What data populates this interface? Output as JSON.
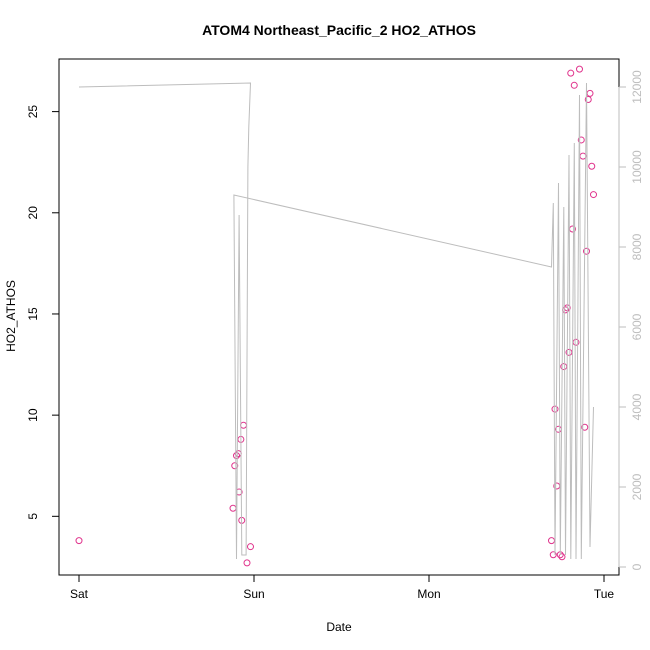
{
  "chart_data": {
    "type": "scatter",
    "title": "ATOM4 Northeast_Pacific_2 HO2_ATHOS",
    "xlabel": "Date",
    "ylabel": "HO2_ATHOS",
    "x_axis": {
      "type": "date",
      "ticks": [
        "Sat",
        "Sun",
        "Mon",
        "Tue"
      ]
    },
    "y_axis_left": {
      "range": [
        2.1,
        27.6
      ],
      "ticks": [
        5,
        10,
        15,
        20,
        25
      ]
    },
    "y_axis_right": {
      "range": [
        -200,
        12700
      ],
      "ticks": [
        0,
        2000,
        4000,
        6000,
        8000,
        10000,
        12000
      ],
      "color": "#bdbdbd"
    },
    "series": [
      {
        "kind": "points",
        "axis": "left",
        "color": "#e0338c",
        "points": [
          {
            "x": 0.0,
            "y": 3.8
          },
          {
            "x": 0.88,
            "y": 5.4
          },
          {
            "x": 0.89,
            "y": 7.5
          },
          {
            "x": 0.9,
            "y": 8.0
          },
          {
            "x": 0.91,
            "y": 8.1
          },
          {
            "x": 0.915,
            "y": 6.2
          },
          {
            "x": 0.925,
            "y": 8.8
          },
          {
            "x": 0.93,
            "y": 4.8
          },
          {
            "x": 0.94,
            "y": 9.5
          },
          {
            "x": 0.96,
            "y": 2.7
          },
          {
            "x": 0.98,
            "y": 3.5
          },
          {
            "x": 2.7,
            "y": 3.8
          },
          {
            "x": 2.71,
            "y": 3.1
          },
          {
            "x": 2.72,
            "y": 10.3
          },
          {
            "x": 2.73,
            "y": 6.5
          },
          {
            "x": 2.74,
            "y": 9.3
          },
          {
            "x": 2.75,
            "y": 3.1
          },
          {
            "x": 2.76,
            "y": 3.0
          },
          {
            "x": 2.77,
            "y": 12.4
          },
          {
            "x": 2.78,
            "y": 15.2
          },
          {
            "x": 2.79,
            "y": 15.3
          },
          {
            "x": 2.8,
            "y": 13.1
          },
          {
            "x": 2.81,
            "y": 26.9
          },
          {
            "x": 2.82,
            "y": 19.2
          },
          {
            "x": 2.83,
            "y": 26.3
          },
          {
            "x": 2.84,
            "y": 13.6
          },
          {
            "x": 2.86,
            "y": 27.1
          },
          {
            "x": 2.87,
            "y": 23.6
          },
          {
            "x": 2.88,
            "y": 22.8
          },
          {
            "x": 2.89,
            "y": 9.4
          },
          {
            "x": 2.9,
            "y": 18.1
          },
          {
            "x": 2.91,
            "y": 25.6
          },
          {
            "x": 2.92,
            "y": 25.9
          },
          {
            "x": 2.93,
            "y": 22.3
          },
          {
            "x": 2.94,
            "y": 20.9
          }
        ]
      },
      {
        "kind": "line",
        "axis": "right",
        "color": "#bdbdbd",
        "points": [
          {
            "x": 0.0,
            "y": 12000
          },
          {
            "x": 0.98,
            "y": 12100
          },
          {
            "x": 0.97,
            "y": 11000
          },
          {
            "x": 0.965,
            "y": 10000
          },
          {
            "x": 0.955,
            "y": 300
          },
          {
            "x": 0.945,
            "y": 300
          },
          {
            "x": 0.93,
            "y": 300
          },
          {
            "x": 0.915,
            "y": 8800
          },
          {
            "x": 0.9,
            "y": 200
          },
          {
            "x": 0.885,
            "y": 9300
          },
          {
            "x": 2.7,
            "y": 7500
          },
          {
            "x": 2.71,
            "y": 9100
          },
          {
            "x": 2.72,
            "y": 300
          },
          {
            "x": 2.74,
            "y": 9600
          },
          {
            "x": 2.75,
            "y": 300
          },
          {
            "x": 2.77,
            "y": 9000
          },
          {
            "x": 2.78,
            "y": 300
          },
          {
            "x": 2.8,
            "y": 10300
          },
          {
            "x": 2.81,
            "y": 200
          },
          {
            "x": 2.83,
            "y": 10600
          },
          {
            "x": 2.84,
            "y": 200
          },
          {
            "x": 2.86,
            "y": 11800
          },
          {
            "x": 2.87,
            "y": 200
          },
          {
            "x": 2.9,
            "y": 12100
          },
          {
            "x": 2.92,
            "y": 500
          },
          {
            "x": 2.94,
            "y": 4000
          }
        ]
      }
    ],
    "grid": false,
    "legend": "none"
  }
}
